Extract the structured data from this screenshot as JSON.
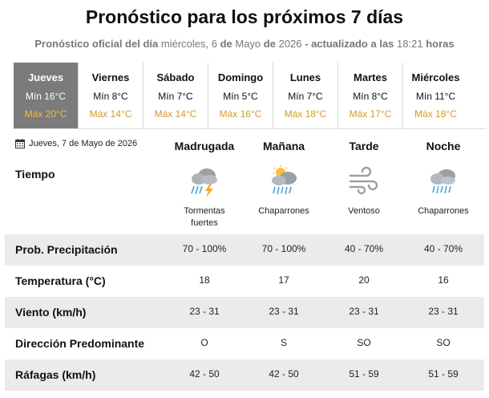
{
  "header": {
    "title": "Pronóstico para los próximos 7 días",
    "sub_prefix": "Pronóstico oficial del día",
    "sub_weekday": "miércoles, 6",
    "sub_de1": "de",
    "sub_month": "Mayo",
    "sub_de2": "de",
    "sub_year": "2026",
    "sub_updated": "- actualizado a las",
    "sub_time": "18:21",
    "sub_horas": "horas"
  },
  "days": [
    {
      "name": "Jueves",
      "min": "Mín 16°C",
      "max": "Máx 20°C"
    },
    {
      "name": "Viernes",
      "min": "Mín 8°C",
      "max": "Máx 14°C"
    },
    {
      "name": "Sábado",
      "min": "Mín 7°C",
      "max": "Máx 14°C"
    },
    {
      "name": "Domingo",
      "min": "Mín 5°C",
      "max": "Máx 16°C"
    },
    {
      "name": "Lunes",
      "min": "Mín 7°C",
      "max": "Máx 18°C"
    },
    {
      "name": "Martes",
      "min": "Mín 8°C",
      "max": "Máx 17°C"
    },
    {
      "name": "Miércoles",
      "min": "Mín 11°C",
      "max": "Máx 18°C"
    }
  ],
  "detail": {
    "date": "Jueves, 7 de Mayo de 2026",
    "periods": [
      "Madrugada",
      "Mañana",
      "Tarde",
      "Noche"
    ],
    "tiempo_label": "Tiempo",
    "weather": [
      {
        "icon": "thunderstorm-icon",
        "label_l1": "Tormentas",
        "label_l2": "fuertes"
      },
      {
        "icon": "sun-cloud-rain-icon",
        "label_l1": "Chaparrones",
        "label_l2": ""
      },
      {
        "icon": "wind-icon",
        "label_l1": "Ventoso",
        "label_l2": ""
      },
      {
        "icon": "cloud-rain-icon",
        "label_l1": "Chaparrones",
        "label_l2": ""
      }
    ],
    "rows": [
      {
        "label": "Prob. Precipitación",
        "values": [
          "70 - 100%",
          "70 - 100%",
          "40 - 70%",
          "40 - 70%"
        ]
      },
      {
        "label": "Temperatura (°C)",
        "values": [
          "18",
          "17",
          "20",
          "16"
        ]
      },
      {
        "label": "Viento (km/h)",
        "values": [
          "23 - 31",
          "23 - 31",
          "23 - 31",
          "23 - 31"
        ]
      },
      {
        "label": "Dirección Predominante",
        "values": [
          "O",
          "S",
          "SO",
          "SO"
        ]
      },
      {
        "label": "Ráfagas (km/h)",
        "values": [
          "42 - 50",
          "42 - 50",
          "51 - 59",
          "51 - 59"
        ]
      }
    ]
  },
  "colors": {
    "active_day": "#7b7b7b",
    "max_temp": "#d29a2c",
    "row_shade": "#ebebeb"
  }
}
